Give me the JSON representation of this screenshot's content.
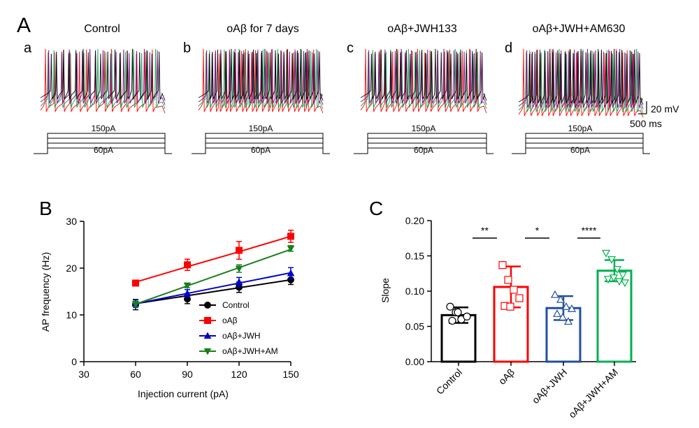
{
  "panel_letters": {
    "A": "A",
    "B": "B",
    "C": "C"
  },
  "panel_A": {
    "sub_letters": [
      "a",
      "b",
      "c",
      "d"
    ],
    "titles": [
      "Control",
      "oAβ for 7 days",
      "oAβ+JWH133",
      "oAβ+JWH+AM630"
    ],
    "step_labels": {
      "top": "150pA",
      "bottom": "60pA"
    },
    "scale_bar": {
      "voltage": "20 mV",
      "time": "500 ms"
    },
    "trace_colors": [
      "#000000",
      "#ff0000",
      "#00a651",
      "#800080"
    ]
  },
  "chart_data": [
    {
      "type": "line",
      "panel": "B",
      "xlabel": "Injection  current (pA)",
      "ylabel": "AP frequency (Hz)",
      "x": [
        60,
        90,
        120,
        150
      ],
      "xlim": [
        30,
        150
      ],
      "ylim": [
        0,
        30
      ],
      "xticks": [
        30,
        60,
        90,
        120,
        150
      ],
      "yticks": [
        0,
        10,
        20,
        30
      ],
      "legend_position": "bottom-right",
      "series": [
        {
          "name": "Control",
          "color": "#000000",
          "marker": "circle",
          "values": [
            12.2,
            13.4,
            15.9,
            17.5
          ],
          "errors": [
            1.1,
            1.0,
            1.1,
            1.0
          ],
          "fit": [
            12.4,
            14.1,
            15.8,
            17.5
          ]
        },
        {
          "name": "oAβ",
          "color": "#ff0000",
          "marker": "square",
          "values": [
            16.8,
            20.7,
            23.8,
            26.8
          ],
          "errors": [
            0.6,
            1.2,
            1.9,
            1.3
          ],
          "fit": [
            17.0,
            20.3,
            23.5,
            26.8
          ]
        },
        {
          "name": "oAβ+JWH",
          "color": "#0000cc",
          "marker": "triangle-up",
          "values": [
            12.4,
            14.6,
            17.0,
            18.9
          ],
          "errors": [
            0.8,
            0.8,
            1.0,
            1.2
          ],
          "fit": [
            12.4,
            14.6,
            16.8,
            19.0
          ]
        },
        {
          "name": "oAβ+JWH+AM",
          "color": "#1a7f1a",
          "marker": "triangle-down",
          "values": [
            12.3,
            16.3,
            19.9,
            24.2
          ],
          "errors": [
            0.6,
            0.5,
            0.8,
            0.6
          ],
          "fit": [
            12.3,
            16.2,
            20.1,
            24.0
          ]
        }
      ]
    },
    {
      "type": "bar",
      "panel": "C",
      "ylabel": "Slope",
      "ylim": [
        0,
        0.2
      ],
      "yticks": [
        "0.00",
        "0.05",
        "0.10",
        "0.15",
        "0.20"
      ],
      "categories": [
        "Control",
        "oAβ",
        "oAβ+JWH",
        "oAβ+JWH+AM"
      ],
      "values": [
        0.066,
        0.106,
        0.076,
        0.129
      ],
      "errors": [
        0.011,
        0.029,
        0.017,
        0.015
      ],
      "colors": [
        "#000000",
        "#ff0000",
        "#1f4fa0",
        "#00b050"
      ],
      "markers": [
        "circle",
        "square",
        "triangle-up",
        "triangle-down"
      ],
      "points": [
        [
          0.078,
          0.07,
          0.06,
          0.064,
          0.058,
          0.07
        ],
        [
          0.137,
          0.116,
          0.102,
          0.09,
          0.079,
          0.078
        ],
        [
          0.095,
          0.088,
          0.078,
          0.075,
          0.068,
          0.063,
          0.057
        ],
        [
          0.154,
          0.145,
          0.131,
          0.123,
          0.117,
          0.119,
          0.114,
          0.112
        ]
      ],
      "significance": [
        {
          "between": [
            0,
            1
          ],
          "label": "**"
        },
        {
          "between": [
            1,
            2
          ],
          "label": "*"
        },
        {
          "between": [
            2,
            3
          ],
          "label": "****"
        }
      ]
    }
  ]
}
